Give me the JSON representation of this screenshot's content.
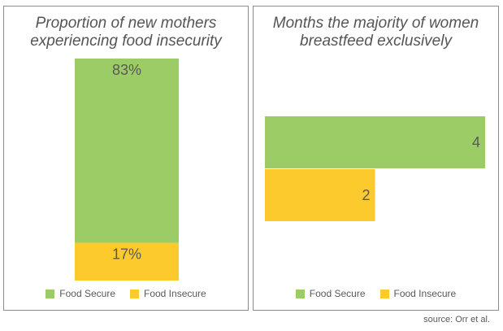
{
  "chart_data": [
    {
      "type": "bar",
      "orientation": "vertical-stacked",
      "title_lines": [
        "Proportion of new mothers",
        "experiencing food insecurity"
      ],
      "series": [
        {
          "name": "Food Secure",
          "value": 83,
          "label": "83%",
          "color": "#9ccc65"
        },
        {
          "name": "Food Insecure",
          "value": 17,
          "label": "17%",
          "color": "#fdca2e"
        }
      ],
      "ylim": [
        0,
        100
      ],
      "legend": "bottom"
    },
    {
      "type": "bar",
      "orientation": "horizontal",
      "title_lines": [
        "Months the majority of women",
        "breastfeed exclusively"
      ],
      "series": [
        {
          "name": "Food Secure",
          "value": 4,
          "label": "4",
          "color": "#9ccc65"
        },
        {
          "name": "Food Insecure",
          "value": 2,
          "label": "2",
          "color": "#fdca2e"
        }
      ],
      "xlim": [
        0,
        4
      ],
      "legend": "bottom"
    }
  ],
  "legend": {
    "items": [
      {
        "label": "Food Secure",
        "color": "#9ccc65"
      },
      {
        "label": "Food Insecure",
        "color": "#fdca2e"
      }
    ]
  },
  "source": "source: Orr et al."
}
